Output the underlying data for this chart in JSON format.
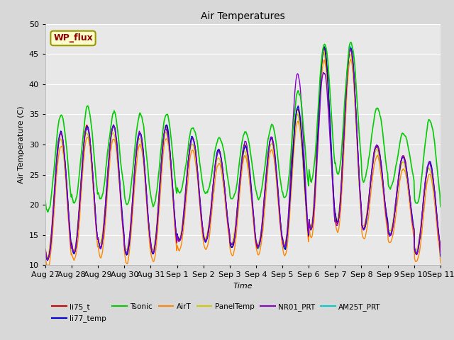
{
  "title": "Air Temperatures",
  "xlabel": "Time",
  "ylabel": "Air Temperature (C)",
  "ylim": [
    10,
    50
  ],
  "series": {
    "li75_t": {
      "color": "#cc0000",
      "lw": 1.0
    },
    "li77_temp": {
      "color": "#0000cc",
      "lw": 1.0
    },
    "Tsonic": {
      "color": "#00cc00",
      "lw": 1.2
    },
    "AirT": {
      "color": "#ff8800",
      "lw": 1.0
    },
    "PanelTemp": {
      "color": "#cccc00",
      "lw": 1.0
    },
    "NR01_PRT": {
      "color": "#8800cc",
      "lw": 1.0
    },
    "AM25T_PRT": {
      "color": "#00cccc",
      "lw": 1.2
    }
  },
  "xtick_labels": [
    "Aug 27",
    "Aug 28",
    "Aug 29",
    "Aug 30",
    "Aug 31",
    "Sep 1",
    "Sep 2",
    "Sep 3",
    "Sep 4",
    "Sep 5",
    "Sep 6",
    "Sep 7",
    "Sep 8",
    "Sep 9",
    "Sep 10",
    "Sep 11"
  ],
  "annotation_text": "WP_flux",
  "legend_order": [
    "li75_t",
    "li77_temp",
    "Tsonic",
    "AirT",
    "PanelTemp",
    "NR01_PRT",
    "AM25T_PRT"
  ],
  "fig_bg": "#d8d8d8",
  "ax_bg": "#e8e8e8"
}
